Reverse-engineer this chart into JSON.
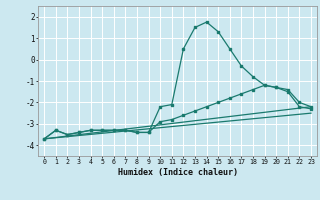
{
  "xlabel": "Humidex (Indice chaleur)",
  "background_color": "#cce8f0",
  "grid_color": "#ffffff",
  "line_color": "#1a7a6e",
  "xlim": [
    -0.5,
    23.5
  ],
  "ylim": [
    -4.5,
    2.5
  ],
  "yticks": [
    -4,
    -3,
    -2,
    -1,
    0,
    1,
    2
  ],
  "xticks": [
    0,
    1,
    2,
    3,
    4,
    5,
    6,
    7,
    8,
    9,
    10,
    11,
    12,
    13,
    14,
    15,
    16,
    17,
    18,
    19,
    20,
    21,
    22,
    23
  ],
  "line1_x": [
    0,
    1,
    2,
    3,
    4,
    5,
    6,
    7,
    8,
    9,
    10,
    11,
    12,
    13,
    14,
    15,
    16,
    17,
    18,
    19,
    20,
    21,
    22,
    23
  ],
  "line1_y": [
    -3.7,
    -3.3,
    -3.5,
    -3.4,
    -3.3,
    -3.3,
    -3.3,
    -3.3,
    -3.4,
    -3.4,
    -2.2,
    -2.1,
    0.5,
    1.5,
    1.75,
    1.3,
    0.5,
    -0.3,
    -0.8,
    -1.2,
    -1.3,
    -1.4,
    -2.0,
    -2.2
  ],
  "line2_x": [
    0,
    1,
    2,
    3,
    4,
    5,
    6,
    7,
    8,
    9,
    10,
    11,
    12,
    13,
    14,
    15,
    16,
    17,
    18,
    19,
    20,
    21,
    22,
    23
  ],
  "line2_y": [
    -3.7,
    -3.3,
    -3.5,
    -3.4,
    -3.3,
    -3.3,
    -3.3,
    -3.3,
    -3.4,
    -3.4,
    -2.9,
    -2.8,
    -2.6,
    -2.4,
    -2.2,
    -2.0,
    -1.8,
    -1.6,
    -1.4,
    -1.2,
    -1.3,
    -1.5,
    -2.2,
    -2.3
  ],
  "line3_x": [
    0,
    23
  ],
  "line3_y": [
    -3.7,
    -2.2
  ],
  "line4_x": [
    0,
    23
  ],
  "line4_y": [
    -3.7,
    -2.5
  ]
}
